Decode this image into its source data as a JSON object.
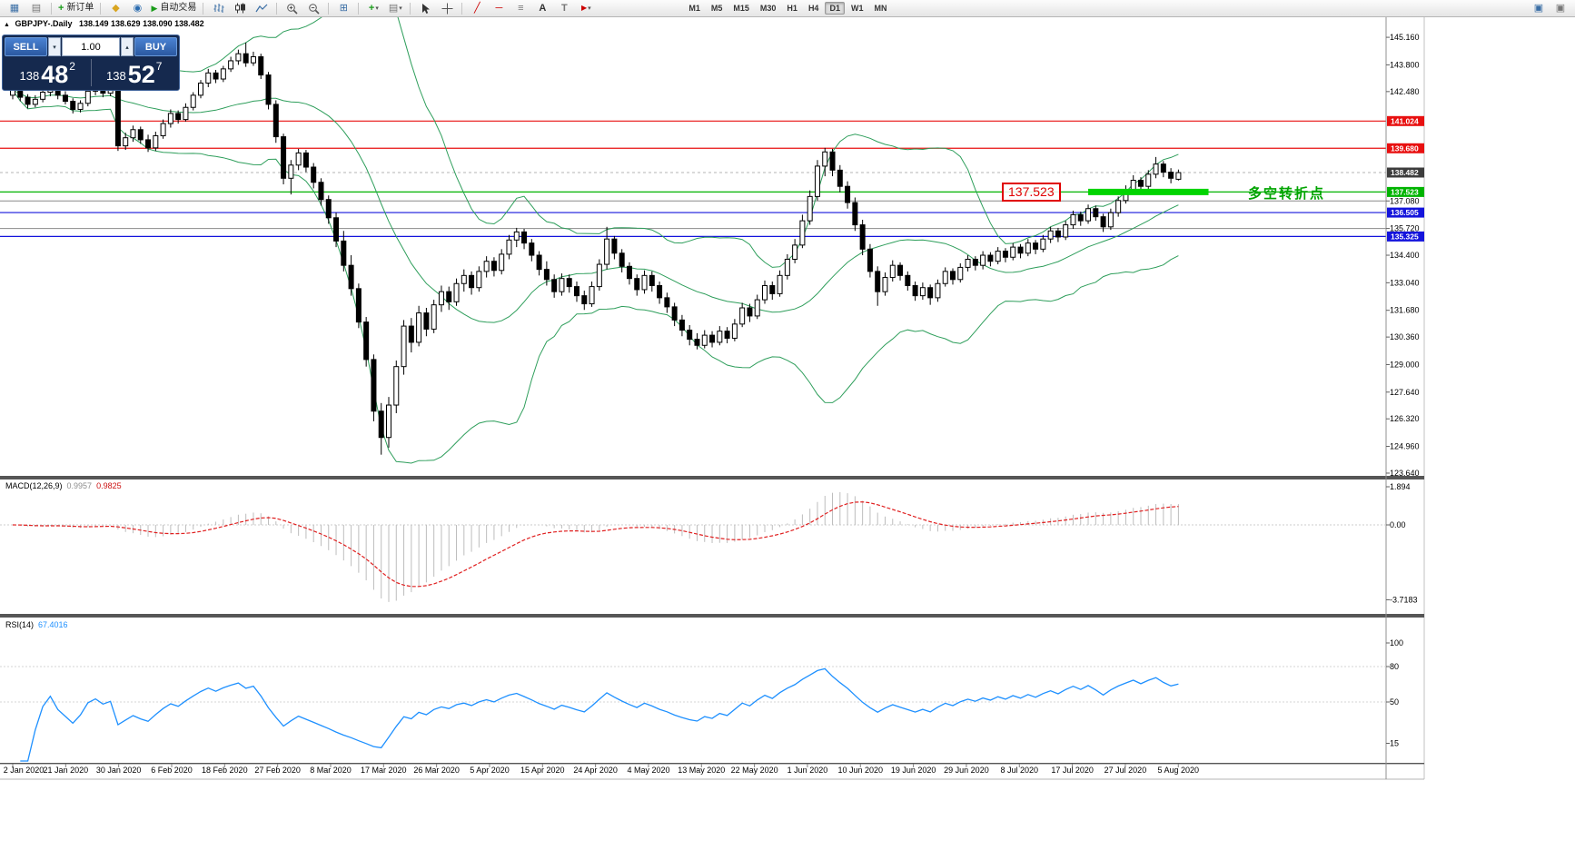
{
  "toolbar": {
    "new_order_label": "新订单",
    "auto_trading_label": "自动交易",
    "timeframes": [
      "M1",
      "M5",
      "M15",
      "M30",
      "H1",
      "H4",
      "D1",
      "W1",
      "MN"
    ],
    "active_timeframe": "D1"
  },
  "icons": {
    "new_chart": "▦",
    "profiles": "▤",
    "plus": "+",
    "metaeditor": "◆",
    "market_watch": "◉",
    "play": "▶",
    "tile": "⊞",
    "dropdown": "▾",
    "trend_line": "╱",
    "h_line": "─",
    "fibo": "≡",
    "text_tool": "A",
    "label_tool": "T",
    "arrow_tool": "▶",
    "vol_up": "▴",
    "vol_down": "▾",
    "panel_toggle": "▲",
    "monitor": "▣"
  },
  "symbol_bar": {
    "symbol": "GBPJPY-.Daily",
    "ohlc": "138.149 138.629 138.090 138.482"
  },
  "trade_panel": {
    "sell_label": "SELL",
    "buy_label": "BUY",
    "volume": "1.00",
    "sell_prefix": "138",
    "sell_big": "48",
    "sell_sup": "2",
    "buy_prefix": "138",
    "buy_big": "52",
    "buy_sup": "7"
  },
  "annotations": {
    "level_label": "137.523",
    "note_text": "多空转折点"
  },
  "chart_data": {
    "type": "candlestick",
    "symbol": "GBPJPY-",
    "timeframe": "Daily",
    "bull_color": "#ffffff",
    "bear_color": "#000000",
    "outline_color": "#000000",
    "band_color": "#2e9e5b",
    "price_axis": {
      "plain_ticks": [
        {
          "value": 145.16,
          "label": "145.160"
        },
        {
          "value": 143.8,
          "label": "143.800"
        },
        {
          "value": 142.48,
          "label": "142.480"
        },
        {
          "value": 134.4,
          "label": "134.400"
        },
        {
          "value": 133.04,
          "label": "133.040"
        },
        {
          "value": 131.68,
          "label": "131.680"
        },
        {
          "value": 130.36,
          "label": "130.360"
        },
        {
          "value": 129.0,
          "label": "129.000"
        },
        {
          "value": 127.64,
          "label": "127.640"
        },
        {
          "value": 126.32,
          "label": "126.320"
        },
        {
          "value": 124.96,
          "label": "124.960"
        },
        {
          "value": 123.64,
          "label": "123.640"
        }
      ],
      "levels": [
        {
          "value": 141.024,
          "label": "141.024",
          "color": "#e81010",
          "style": "line-box"
        },
        {
          "value": 139.68,
          "label": "139.680",
          "color": "#e81010",
          "style": "line-box"
        },
        {
          "value": 138.482,
          "label": "138.482",
          "color": "#3d3d3d",
          "style": "bid"
        },
        {
          "value": 137.523,
          "label": "137.523",
          "color": "#00b400",
          "style": "line-box"
        },
        {
          "value": 137.08,
          "label": "137.080",
          "color": "#8a8a8a",
          "style": "line-plain"
        },
        {
          "value": 136.505,
          "label": "136.505",
          "color": "#1414dc",
          "style": "line-box"
        },
        {
          "value": 135.72,
          "label": "135.720",
          "color": "#8a8a8a",
          "style": "line-plain"
        },
        {
          "value": 135.325,
          "label": "135.325",
          "color": "#1414dc",
          "style": "line-box"
        }
      ]
    },
    "highlight_bar": {
      "price": 137.523,
      "x_start_index": 143,
      "x_end_index": 159,
      "color": "#00d400",
      "thickness": 7
    },
    "x_axis_labels": [
      "2 Jan 2020",
      "21 Jan 2020",
      "30 Jan 2020",
      "6 Feb 2020",
      "18 Feb 2020",
      "27 Feb 2020",
      "8 Mar 2020",
      "17 Mar 2020",
      "26 Mar 2020",
      "5 Apr 2020",
      "15 Apr 2020",
      "24 Apr 2020",
      "4 May 2020",
      "13 May 2020",
      "22 May 2020",
      "1 Jun 2020",
      "10 Jun 2020",
      "19 Jun 2020",
      "29 Jun 2020",
      "8 Jul 2020",
      "17 Jul 2020",
      "27 Jul 2020",
      "5 Aug 2020"
    ],
    "indicators": {
      "bollinger": {
        "period": 20,
        "deviation": 2
      },
      "macd": {
        "label": "MACD(12,26,9)",
        "value_main": "0.9957",
        "value_signal": "0.9825",
        "histogram_color": "#bdbdbd",
        "signal_color": "#e02020",
        "scale": [
          {
            "value": 1.894,
            "label": "1.894"
          },
          {
            "value": 0,
            "label": "0.00"
          },
          {
            "value": -3.7183,
            "label": "-3.7183"
          }
        ]
      },
      "rsi": {
        "label": "RSI(14)",
        "value": "67.4016",
        "color": "#1e90ff",
        "scale": [
          {
            "value": 100,
            "label": "100"
          },
          {
            "value": 80,
            "label": "80"
          },
          {
            "value": 50,
            "label": "50"
          },
          {
            "value": 15,
            "label": "15"
          }
        ]
      }
    },
    "candles": [
      [
        142.3,
        142.75,
        142.1,
        142.55
      ],
      [
        142.55,
        142.7,
        142.0,
        142.2
      ],
      [
        142.2,
        142.35,
        141.65,
        141.85
      ],
      [
        141.85,
        142.3,
        141.7,
        142.1
      ],
      [
        142.1,
        142.6,
        141.95,
        142.45
      ],
      [
        142.45,
        142.9,
        142.25,
        142.7
      ],
      [
        142.7,
        142.8,
        142.1,
        142.3
      ],
      [
        142.3,
        142.5,
        141.85,
        142.0
      ],
      [
        142.0,
        142.15,
        141.4,
        141.6
      ],
      [
        141.6,
        142.05,
        141.45,
        141.9
      ],
      [
        141.9,
        142.65,
        141.75,
        142.5
      ],
      [
        142.5,
        142.95,
        142.3,
        142.75
      ],
      [
        142.75,
        142.85,
        142.2,
        142.4
      ],
      [
        142.4,
        142.8,
        142.25,
        142.6
      ],
      [
        142.6,
        142.7,
        139.55,
        139.8
      ],
      [
        139.8,
        140.45,
        139.6,
        140.2
      ],
      [
        140.2,
        140.8,
        140.0,
        140.6
      ],
      [
        140.6,
        140.75,
        139.9,
        140.1
      ],
      [
        140.1,
        140.35,
        139.5,
        139.7
      ],
      [
        139.7,
        140.5,
        139.55,
        140.3
      ],
      [
        140.3,
        141.1,
        140.15,
        140.9
      ],
      [
        140.9,
        141.6,
        140.7,
        141.4
      ],
      [
        141.4,
        141.55,
        140.9,
        141.1
      ],
      [
        141.1,
        141.9,
        141.0,
        141.7
      ],
      [
        141.7,
        142.45,
        141.55,
        142.3
      ],
      [
        142.3,
        143.05,
        142.15,
        142.9
      ],
      [
        142.9,
        143.6,
        142.7,
        143.4
      ],
      [
        143.4,
        143.55,
        142.9,
        143.1
      ],
      [
        143.1,
        143.75,
        142.95,
        143.6
      ],
      [
        143.6,
        144.2,
        143.45,
        144.0
      ],
      [
        144.0,
        144.55,
        143.8,
        144.35
      ],
      [
        144.35,
        144.9,
        143.7,
        143.9
      ],
      [
        143.9,
        144.45,
        143.75,
        144.2
      ],
      [
        144.2,
        144.35,
        143.1,
        143.3
      ],
      [
        143.3,
        143.45,
        141.6,
        141.85
      ],
      [
        141.85,
        142.05,
        139.95,
        140.25
      ],
      [
        140.25,
        140.4,
        137.9,
        138.2
      ],
      [
        138.2,
        139.1,
        137.4,
        138.85
      ],
      [
        138.85,
        139.65,
        138.6,
        139.45
      ],
      [
        139.45,
        139.6,
        138.5,
        138.75
      ],
      [
        138.75,
        138.95,
        137.7,
        138.0
      ],
      [
        138.0,
        138.2,
        136.85,
        137.15
      ],
      [
        137.15,
        137.35,
        135.95,
        136.25
      ],
      [
        136.25,
        136.5,
        134.8,
        135.1
      ],
      [
        135.1,
        135.6,
        133.6,
        133.9
      ],
      [
        133.9,
        134.4,
        132.4,
        132.75
      ],
      [
        132.75,
        133.0,
        130.8,
        131.1
      ],
      [
        131.1,
        131.35,
        128.9,
        129.25
      ],
      [
        129.25,
        129.5,
        126.2,
        126.7
      ],
      [
        126.7,
        127.1,
        124.55,
        125.4
      ],
      [
        125.4,
        127.4,
        124.9,
        127.0
      ],
      [
        127.0,
        129.2,
        126.6,
        128.9
      ],
      [
        128.9,
        131.2,
        128.5,
        130.9
      ],
      [
        130.9,
        131.3,
        129.6,
        130.1
      ],
      [
        130.1,
        131.9,
        129.9,
        131.55
      ],
      [
        131.55,
        131.8,
        130.4,
        130.75
      ],
      [
        130.75,
        132.2,
        130.55,
        131.95
      ],
      [
        131.95,
        132.9,
        131.6,
        132.6
      ],
      [
        132.6,
        132.85,
        131.7,
        132.1
      ],
      [
        132.1,
        133.25,
        131.9,
        133.0
      ],
      [
        133.0,
        133.7,
        132.6,
        133.4
      ],
      [
        133.4,
        133.6,
        132.45,
        132.8
      ],
      [
        132.8,
        133.85,
        132.6,
        133.6
      ],
      [
        133.6,
        134.35,
        133.3,
        134.1
      ],
      [
        134.1,
        134.3,
        133.35,
        133.65
      ],
      [
        133.65,
        134.7,
        133.45,
        134.45
      ],
      [
        134.45,
        135.4,
        134.2,
        135.15
      ],
      [
        135.15,
        135.75,
        134.8,
        135.55
      ],
      [
        135.55,
        135.7,
        134.7,
        135.0
      ],
      [
        135.0,
        135.2,
        134.1,
        134.4
      ],
      [
        134.4,
        134.6,
        133.4,
        133.7
      ],
      [
        133.7,
        134.1,
        132.9,
        133.2
      ],
      [
        133.2,
        133.45,
        132.3,
        132.6
      ],
      [
        132.6,
        133.5,
        132.4,
        133.25
      ],
      [
        133.25,
        133.45,
        132.55,
        132.85
      ],
      [
        132.85,
        133.1,
        132.1,
        132.4
      ],
      [
        132.4,
        132.65,
        131.7,
        132.0
      ],
      [
        132.0,
        133.1,
        131.85,
        132.85
      ],
      [
        132.85,
        134.2,
        132.65,
        133.95
      ],
      [
        133.95,
        135.8,
        133.7,
        135.2
      ],
      [
        135.2,
        135.35,
        134.2,
        134.5
      ],
      [
        134.5,
        134.7,
        133.55,
        133.85
      ],
      [
        133.85,
        134.05,
        132.95,
        133.25
      ],
      [
        133.25,
        133.45,
        132.4,
        132.7
      ],
      [
        132.7,
        133.65,
        132.5,
        133.4
      ],
      [
        133.4,
        133.6,
        132.6,
        132.9
      ],
      [
        132.9,
        133.1,
        132.0,
        132.3
      ],
      [
        132.3,
        132.55,
        131.55,
        131.85
      ],
      [
        131.85,
        132.05,
        130.9,
        131.2
      ],
      [
        131.2,
        131.45,
        130.4,
        130.7
      ],
      [
        130.7,
        130.95,
        129.95,
        130.25
      ],
      [
        130.25,
        130.55,
        129.75,
        129.95
      ],
      [
        129.95,
        130.7,
        129.8,
        130.45
      ],
      [
        130.45,
        130.65,
        129.85,
        130.1
      ],
      [
        130.1,
        130.9,
        129.95,
        130.65
      ],
      [
        130.65,
        130.85,
        130.05,
        130.3
      ],
      [
        130.3,
        131.25,
        130.15,
        131.0
      ],
      [
        131.0,
        132.05,
        130.85,
        131.8
      ],
      [
        131.8,
        132.0,
        131.1,
        131.4
      ],
      [
        131.4,
        132.45,
        131.25,
        132.2
      ],
      [
        132.2,
        133.15,
        132.0,
        132.9
      ],
      [
        132.9,
        133.1,
        132.2,
        132.5
      ],
      [
        132.5,
        133.65,
        132.35,
        133.4
      ],
      [
        133.4,
        134.45,
        133.2,
        134.2
      ],
      [
        134.2,
        135.2,
        134.0,
        134.9
      ],
      [
        134.9,
        136.4,
        134.75,
        136.1
      ],
      [
        136.1,
        137.6,
        135.9,
        137.3
      ],
      [
        137.3,
        139.1,
        137.1,
        138.8
      ],
      [
        138.8,
        139.7,
        138.3,
        139.5
      ],
      [
        139.5,
        139.65,
        138.3,
        138.6
      ],
      [
        138.6,
        138.85,
        137.5,
        137.8
      ],
      [
        137.8,
        138.05,
        136.7,
        137.0
      ],
      [
        137.0,
        137.25,
        135.6,
        135.9
      ],
      [
        135.9,
        136.15,
        134.4,
        134.7
      ],
      [
        134.7,
        134.95,
        133.3,
        133.6
      ],
      [
        133.6,
        133.85,
        131.9,
        132.6
      ],
      [
        132.6,
        133.55,
        132.4,
        133.3
      ],
      [
        133.3,
        134.15,
        133.1,
        133.9
      ],
      [
        133.9,
        134.05,
        133.15,
        133.4
      ],
      [
        133.4,
        133.6,
        132.65,
        132.9
      ],
      [
        132.9,
        133.1,
        132.15,
        132.4
      ],
      [
        132.4,
        133.05,
        132.2,
        132.8
      ],
      [
        132.8,
        132.95,
        131.95,
        132.3
      ],
      [
        132.3,
        133.2,
        132.1,
        133.0
      ],
      [
        133.0,
        133.8,
        132.85,
        133.6
      ],
      [
        133.6,
        133.75,
        132.95,
        133.2
      ],
      [
        133.2,
        134.0,
        133.05,
        133.8
      ],
      [
        133.8,
        134.4,
        133.6,
        134.2
      ],
      [
        134.2,
        134.35,
        133.65,
        133.9
      ],
      [
        133.9,
        134.6,
        133.7,
        134.4
      ],
      [
        134.4,
        134.55,
        133.85,
        134.1
      ],
      [
        134.1,
        134.8,
        133.95,
        134.6
      ],
      [
        134.6,
        134.75,
        134.05,
        134.3
      ],
      [
        134.3,
        135.0,
        134.15,
        134.8
      ],
      [
        134.8,
        134.95,
        134.25,
        134.5
      ],
      [
        134.5,
        135.2,
        134.35,
        135.0
      ],
      [
        135.0,
        135.15,
        134.45,
        134.7
      ],
      [
        134.7,
        135.4,
        134.55,
        135.2
      ],
      [
        135.2,
        135.8,
        135.0,
        135.6
      ],
      [
        135.6,
        135.75,
        135.05,
        135.3
      ],
      [
        135.3,
        136.1,
        135.15,
        135.9
      ],
      [
        135.9,
        136.6,
        135.7,
        136.4
      ],
      [
        136.4,
        136.55,
        135.85,
        136.1
      ],
      [
        136.1,
        136.9,
        135.95,
        136.7
      ],
      [
        136.7,
        136.85,
        136.1,
        136.3
      ],
      [
        136.3,
        136.45,
        135.55,
        135.8
      ],
      [
        135.8,
        136.7,
        135.65,
        136.5
      ],
      [
        136.5,
        137.3,
        136.3,
        137.1
      ],
      [
        137.1,
        137.85,
        136.95,
        137.6
      ],
      [
        137.6,
        138.35,
        137.4,
        138.1
      ],
      [
        138.1,
        138.25,
        137.55,
        137.8
      ],
      [
        137.8,
        138.6,
        137.65,
        138.4
      ],
      [
        138.4,
        139.25,
        138.2,
        138.9
      ],
      [
        138.9,
        139.05,
        138.25,
        138.5
      ],
      [
        138.5,
        138.7,
        137.95,
        138.2
      ],
      [
        138.15,
        138.63,
        138.09,
        138.48
      ]
    ]
  }
}
